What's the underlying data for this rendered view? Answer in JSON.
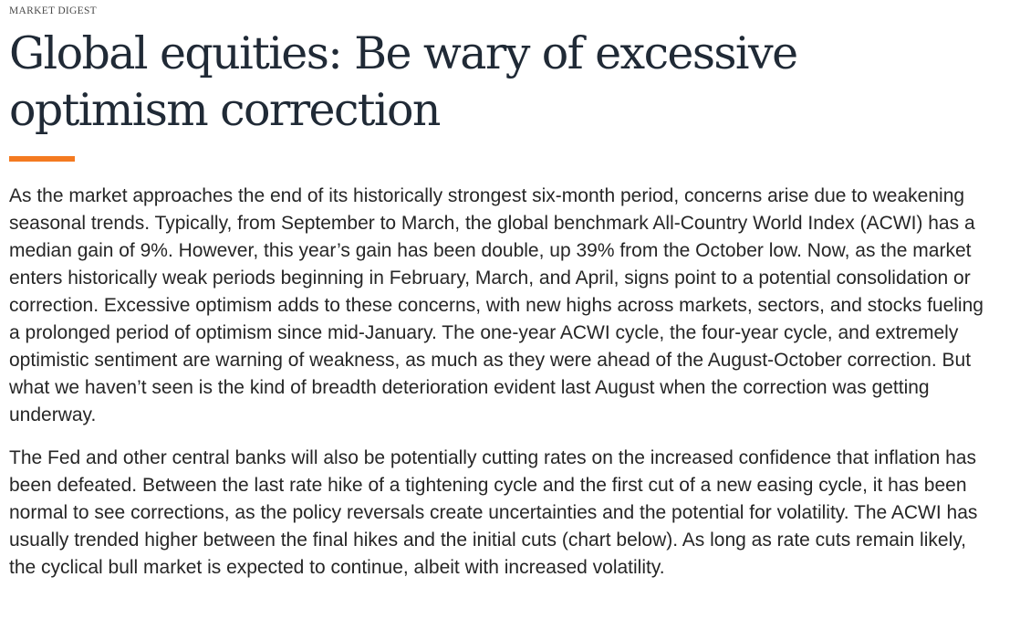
{
  "article": {
    "kicker": "MARKET DIGEST",
    "headline": "Global equities: Be wary of excessive optimism correction",
    "accent_color": "#f47a20",
    "paragraphs": [
      "As the market approaches the end of its historically strongest six-month period, concerns arise due to weakening seasonal trends. Typically, from September to March, the global benchmark All-Country World Index (ACWI) has a median gain of 9%. However, this year’s gain has been double, up 39% from the October low. Now, as the market enters historically weak periods beginning in February, March, and April, signs point to a potential consolidation or correction. Excessive optimism adds to these concerns, with new highs across markets, sectors, and stocks fueling a prolonged period of optimism since mid-January. The one-year ACWI cycle, the four-year cycle, and extremely optimistic sentiment are warning of weakness, as much as they were ahead of the August-October correction. But what we haven’t seen is the kind of breadth deterioration evident last August when the correction was getting underway.",
      "The Fed and other central banks will also be potentially cutting rates on the increased confidence that inflation has been defeated. Between the last rate hike of a tightening cycle and the first cut of a new easing cycle, it has been normal to see corrections, as the policy reversals create uncertainties and the potential for volatility. The ACWI has usually trended higher between the final hikes and the initial cuts (chart below). As long as rate cuts remain likely, the cyclical bull market is expected to continue, albeit with increased volatility."
    ]
  }
}
